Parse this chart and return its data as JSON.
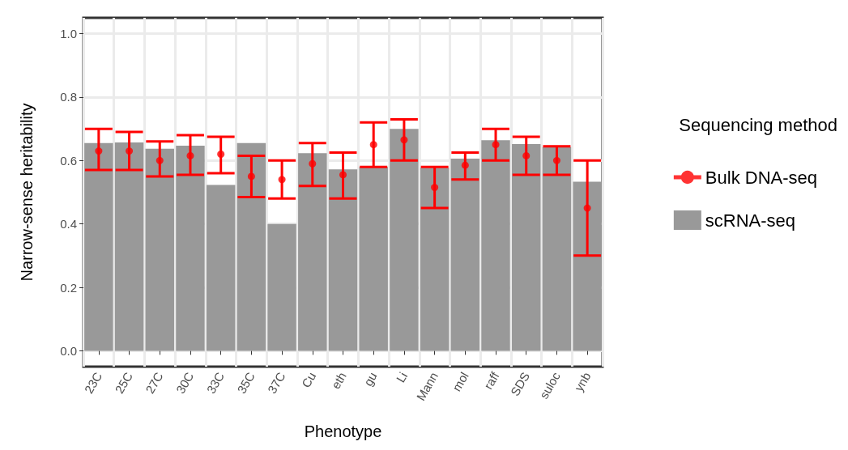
{
  "chart_data": {
    "type": "bar",
    "xlabel": "Phenotype",
    "ylabel": "Narrow-sense heritability",
    "legend_title": "Sequencing method",
    "categories": [
      "23C",
      "25C",
      "27C",
      "30C",
      "33C",
      "35C",
      "37C",
      "Cu",
      "eth",
      "gu",
      "Li",
      "Mann",
      "mol",
      "raff",
      "SDS",
      "suloc",
      "ynb"
    ],
    "series": [
      {
        "name": "Bulk DNA-seq",
        "type": "scatter",
        "color": "#ff0000",
        "values": [
          0.63,
          0.63,
          0.6,
          0.615,
          0.62,
          0.55,
          0.54,
          0.59,
          0.555,
          0.65,
          0.665,
          0.515,
          0.585,
          0.65,
          0.615,
          0.6,
          0.45
        ],
        "errors": [
          [
            0.57,
            0.7
          ],
          [
            0.57,
            0.69
          ],
          [
            0.55,
            0.66
          ],
          [
            0.555,
            0.68
          ],
          [
            0.56,
            0.675
          ],
          [
            0.485,
            0.615
          ],
          [
            0.48,
            0.6
          ],
          [
            0.52,
            0.655
          ],
          [
            0.48,
            0.625
          ],
          [
            0.58,
            0.72
          ],
          [
            0.6,
            0.73
          ],
          [
            0.45,
            0.58
          ],
          [
            0.54,
            0.625
          ],
          [
            0.6,
            0.7
          ],
          [
            0.555,
            0.675
          ],
          [
            0.555,
            0.645
          ],
          [
            0.3,
            0.6
          ]
        ]
      },
      {
        "name": "scRNA-seq",
        "type": "bar",
        "color": "#999999",
        "values": [
          0.655,
          0.657,
          0.637,
          0.647,
          0.523,
          0.655,
          0.4,
          0.623,
          0.572,
          0.58,
          0.7,
          0.577,
          0.606,
          0.664,
          0.652,
          0.642,
          0.533
        ]
      }
    ],
    "ylim": [
      -0.05,
      1.05
    ],
    "yticks": [
      {
        "value": 0,
        "label": "0.0"
      },
      {
        "value": 0.2,
        "label": "0.2"
      },
      {
        "value": 0.4,
        "label": "0.4"
      },
      {
        "value": 0.6,
        "label": "0.6"
      },
      {
        "value": 0.8,
        "label": "0.8"
      },
      {
        "value": 1,
        "label": "1.0"
      }
    ],
    "grid": true,
    "legend": "right",
    "marker": "circle"
  }
}
